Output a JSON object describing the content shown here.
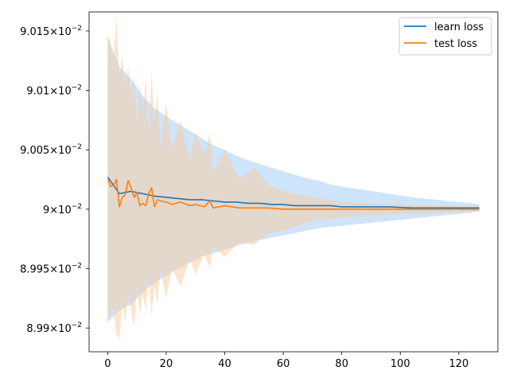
{
  "chart_data": {
    "type": "line",
    "title": "",
    "xlabel": "",
    "ylabel": "",
    "xlim": [
      -6.35,
      133.35
    ],
    "ylim": [
      0.08988,
      0.090166
    ],
    "x_ticks": [
      0,
      20,
      40,
      60,
      80,
      100,
      120
    ],
    "x_tick_labels": [
      "0",
      "20",
      "40",
      "60",
      "80",
      "100",
      "120"
    ],
    "y_ticks": [
      0.0899,
      0.08995,
      0.09,
      0.09005,
      0.0901,
      0.09015
    ],
    "y_tick_labels": [
      {
        "mantissa": "8.99",
        "exponent": "−2"
      },
      {
        "mantissa": "8.995",
        "exponent": "−2"
      },
      {
        "mantissa": "9",
        "exponent": "−2"
      },
      {
        "mantissa": "9.005",
        "exponent": "−2"
      },
      {
        "mantissa": "9.01",
        "exponent": "−2"
      },
      {
        "mantissa": "9.015",
        "exponent": "−2"
      }
    ],
    "y_tick_times": "×10",
    "legend_placement": "top-right",
    "grid": false,
    "series": [
      {
        "name": "learn loss",
        "color": "#1f77b4",
        "band_color": "#a6cef7",
        "x": [
          0,
          4,
          8,
          12,
          16,
          20,
          24,
          28,
          32,
          36,
          40,
          44,
          48,
          52,
          56,
          60,
          64,
          68,
          72,
          76,
          80,
          88,
          96,
          104,
          112,
          120,
          127
        ],
        "values": [
          0.090027,
          0.090013,
          0.090015,
          0.090013,
          0.090011,
          0.09001,
          0.090009,
          0.090008,
          0.090008,
          0.090007,
          0.090006,
          0.090006,
          0.090005,
          0.090005,
          0.090004,
          0.090004,
          0.090003,
          0.090003,
          0.090003,
          0.090003,
          0.090002,
          0.090002,
          0.090002,
          0.090001,
          0.090001,
          0.090001,
          0.090001
        ],
        "upper": [
          0.090145,
          0.09012,
          0.09011,
          0.090095,
          0.090085,
          0.090078,
          0.090072,
          0.090066,
          0.09006,
          0.090054,
          0.09005,
          0.090045,
          0.090041,
          0.090038,
          0.090035,
          0.090032,
          0.090029,
          0.090026,
          0.090024,
          0.090021,
          0.090019,
          0.090016,
          0.090013,
          0.09001,
          0.090008,
          0.090006,
          0.090004
        ],
        "lower": [
          0.089905,
          0.089915,
          0.08992,
          0.08993,
          0.089938,
          0.089944,
          0.08995,
          0.089955,
          0.08996,
          0.089963,
          0.089966,
          0.089969,
          0.089972,
          0.089974,
          0.089976,
          0.089978,
          0.08998,
          0.089982,
          0.089984,
          0.089985,
          0.089986,
          0.089988,
          0.08999,
          0.089992,
          0.089994,
          0.089996,
          0.089998
        ]
      },
      {
        "name": "test loss",
        "color": "#ff7f0e",
        "band_color": "#f9c99c",
        "x": [
          0,
          1,
          2,
          3,
          4,
          5,
          6,
          7,
          8,
          9,
          10,
          11,
          12,
          13,
          14,
          15,
          16,
          17,
          18,
          20,
          22,
          25,
          28,
          30,
          33,
          35,
          36,
          40,
          45,
          50,
          55,
          60,
          70,
          80,
          100,
          127
        ],
        "values": [
          0.090025,
          0.090019,
          0.09002,
          0.090025,
          0.090002,
          0.09001,
          0.090012,
          0.090024,
          0.090018,
          0.09001,
          0.090014,
          0.090003,
          0.090005,
          0.090003,
          0.090013,
          0.090018,
          0.090002,
          0.090008,
          0.090007,
          0.090006,
          0.090004,
          0.090006,
          0.090003,
          0.090004,
          0.090002,
          0.090007,
          0.090001,
          0.090003,
          0.090001,
          0.090001,
          0.090001,
          0.09,
          0.09,
          0.09,
          0.09,
          0.09
        ],
        "upper": [
          0.090147,
          0.09014,
          0.090125,
          0.090162,
          0.09011,
          0.09013,
          0.0901,
          0.09012,
          0.090095,
          0.090112,
          0.09007,
          0.090105,
          0.09008,
          0.09011,
          0.09006,
          0.090117,
          0.09007,
          0.0901,
          0.09005,
          0.09009,
          0.09005,
          0.090075,
          0.09004,
          0.090065,
          0.090045,
          0.090065,
          0.09003,
          0.09005,
          0.090025,
          0.090035,
          0.09002,
          0.090015,
          0.09001,
          0.090006,
          0.090004,
          0.090002
        ],
        "lower": [
          0.089902,
          0.089915,
          0.089915,
          0.089895,
          0.08989,
          0.08992,
          0.089905,
          0.08993,
          0.089915,
          0.0899,
          0.089935,
          0.089912,
          0.089928,
          0.089915,
          0.089945,
          0.08991,
          0.089935,
          0.08992,
          0.08995,
          0.089925,
          0.08995,
          0.089935,
          0.089958,
          0.089945,
          0.089962,
          0.08995,
          0.089968,
          0.08996,
          0.089972,
          0.08997,
          0.08998,
          0.089982,
          0.08999,
          0.089993,
          0.089996,
          0.089998
        ]
      }
    ]
  }
}
